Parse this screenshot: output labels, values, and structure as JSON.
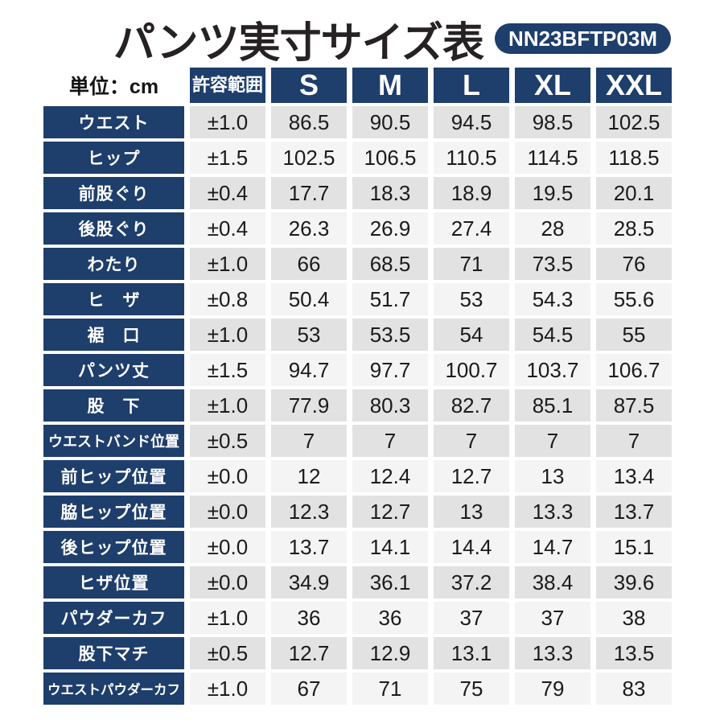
{
  "header": {
    "title": "パンツ実寸サイズ表",
    "badge": "NN23BFTP03M",
    "unit_label": "単位：cm"
  },
  "chart_data": {
    "type": "table",
    "title": "パンツ実寸サイズ表",
    "unit": "cm",
    "columns": [
      "許容範囲",
      "S",
      "M",
      "L",
      "XL",
      "XXL"
    ],
    "rows": [
      {
        "label": "ウエスト",
        "tolerance": "±1.0",
        "values": [
          "86.5",
          "90.5",
          "94.5",
          "98.5",
          "102.5"
        ],
        "shade": "dark"
      },
      {
        "label": "ヒップ",
        "tolerance": "±1.5",
        "values": [
          "102.5",
          "106.5",
          "110.5",
          "114.5",
          "118.5"
        ],
        "shade": "light"
      },
      {
        "label": "前股ぐり",
        "tolerance": "±0.4",
        "values": [
          "17.7",
          "18.3",
          "18.9",
          "19.5",
          "20.1"
        ],
        "shade": "dark"
      },
      {
        "label": "後股ぐり",
        "tolerance": "±0.4",
        "values": [
          "26.3",
          "26.9",
          "27.4",
          "28",
          "28.5"
        ],
        "shade": "light"
      },
      {
        "label": "わたり",
        "tolerance": "±1.0",
        "values": [
          "66",
          "68.5",
          "71",
          "73.5",
          "76"
        ],
        "shade": "dark"
      },
      {
        "label": "ヒ　ザ",
        "tolerance": "±0.8",
        "values": [
          "50.4",
          "51.7",
          "53",
          "54.3",
          "55.6"
        ],
        "shade": "light"
      },
      {
        "label": "裾　口",
        "tolerance": "±1.0",
        "values": [
          "53",
          "53.5",
          "54",
          "54.5",
          "55"
        ],
        "shade": "dark"
      },
      {
        "label": "パンツ丈",
        "tolerance": "±1.5",
        "values": [
          "94.7",
          "97.7",
          "100.7",
          "103.7",
          "106.7"
        ],
        "shade": "light"
      },
      {
        "label": "股　下",
        "tolerance": "±1.0",
        "values": [
          "77.9",
          "80.3",
          "82.7",
          "85.1",
          "87.5"
        ],
        "shade": "dark"
      },
      {
        "label": "ウエストバンド位置",
        "tolerance": "±0.5",
        "values": [
          "7",
          "7",
          "7",
          "7",
          "7"
        ],
        "shade": "dark"
      },
      {
        "label": "前ヒップ位置",
        "tolerance": "±0.0",
        "values": [
          "12",
          "12.4",
          "12.7",
          "13",
          "13.4"
        ],
        "shade": "light"
      },
      {
        "label": "脇ヒップ位置",
        "tolerance": "±0.0",
        "values": [
          "12.3",
          "12.7",
          "13",
          "13.3",
          "13.7"
        ],
        "shade": "dark"
      },
      {
        "label": "後ヒップ位置",
        "tolerance": "±0.0",
        "values": [
          "13.7",
          "14.1",
          "14.4",
          "14.7",
          "15.1"
        ],
        "shade": "light"
      },
      {
        "label": "ヒザ位置",
        "tolerance": "±0.0",
        "values": [
          "34.9",
          "36.1",
          "37.2",
          "38.4",
          "39.6"
        ],
        "shade": "dark"
      },
      {
        "label": "パウダーカフ",
        "tolerance": "±1.0",
        "values": [
          "36",
          "36",
          "37",
          "37",
          "38"
        ],
        "shade": "light"
      },
      {
        "label": "股下マチ",
        "tolerance": "±0.5",
        "values": [
          "12.7",
          "12.9",
          "13.1",
          "13.3",
          "13.5"
        ],
        "shade": "dark"
      },
      {
        "label": "ウエストパウダーカフ",
        "tolerance": "±1.0",
        "values": [
          "67",
          "71",
          "75",
          "79",
          "83"
        ],
        "shade": "light"
      }
    ]
  },
  "colors": {
    "navy": "#1e3e6c",
    "row_dark": "#e2e2e2",
    "row_light": "#f4f4f4",
    "title_text": "#262123",
    "cell_text": "#1b1b1b"
  }
}
